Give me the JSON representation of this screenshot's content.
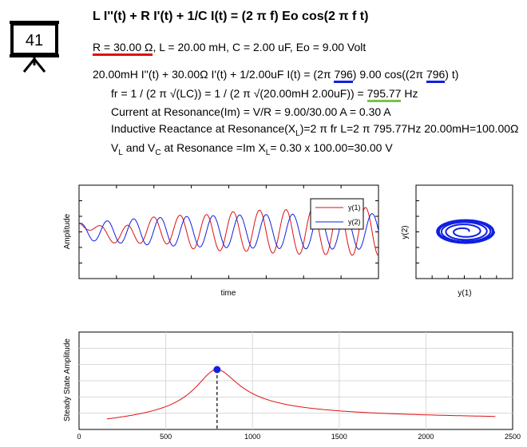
{
  "slide": {
    "number": "41",
    "title": "L I''(t) + R I'(t) + 1/C I(t) = (2 π f) Eo cos(2 π f t)",
    "params": {
      "r": "R = 30.00 Ω",
      "rest": ", L = 20.00 mH, C = 2.00 uF, Eo = 9.00 Volt"
    },
    "ode": {
      "part1": "20.00mH I''(t) + 30.00Ω I'(t) + 1/2.00uF I(t) = (2π ",
      "f1": "796",
      "part2": ") 9.00 cos((2π ",
      "f2": "796",
      "part3": ") t)"
    },
    "resonance": {
      "fr_prefix": "fr = 1 / (2 π √(LC)) = 1 / (2 π √(20.00mH 2.00uF)) = ",
      "fr_value": "795.77",
      "fr_unit": " Hz",
      "current": "Current at Resonance(Im) = V/R = 9.00/30.00 A = 0.30 A",
      "reactance_a": "Inductive Reactance at Resonance(X",
      "reactance_sub": "L",
      "reactance_b": ")=2 π fr L=2 π 795.77Hz 20.00mH=100.00Ω",
      "v_a": "V",
      "v_sub1": "L",
      "v_b": " and V",
      "v_sub2": "C",
      "v_c": " at Resonance =Im X",
      "v_sub3": "L",
      "v_d": "= 0.30 x 100.00=30.00 V"
    }
  },
  "colors": {
    "y1": "#e01010",
    "y2": "#1020e0",
    "resonance_line": "#e01010",
    "marker": "#1020e0"
  },
  "chart_data": [
    {
      "type": "line",
      "xlabel": "time",
      "ylabel": "Amplitude",
      "legend_position": "top-right",
      "grid": false,
      "series": [
        {
          "name": "y(1)",
          "color": "#e01010"
        },
        {
          "name": "y(2)",
          "color": "#1020e0"
        }
      ]
    },
    {
      "type": "line",
      "xlabel": "y(1)",
      "ylabel": "y(2)",
      "grid": false
    },
    {
      "type": "line",
      "xlabel": "",
      "ylabel": "Steady State Amplitude",
      "grid": true,
      "xlim": [
        0,
        2500
      ],
      "x_ticks": [
        "0",
        "500",
        "1000",
        "1500",
        "2000",
        "2500"
      ],
      "resonance_x": 795.77,
      "x_range": [
        160,
        2400
      ],
      "peak_value": 1.0
    }
  ]
}
